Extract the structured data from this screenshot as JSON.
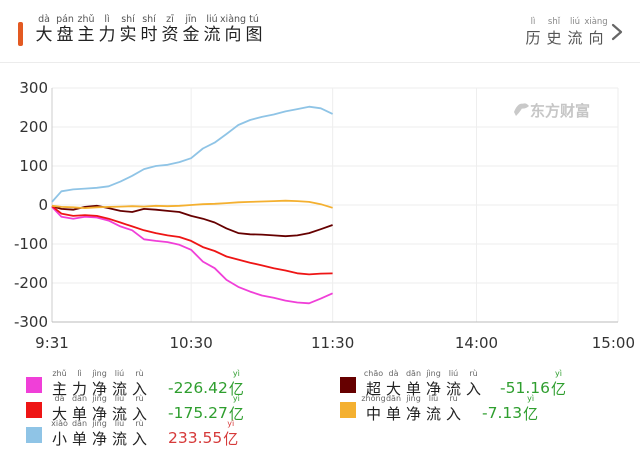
{
  "header": {
    "title_chars": [
      {
        "hz": "大",
        "py": "dà"
      },
      {
        "hz": "盘",
        "py": "pán"
      },
      {
        "hz": "主",
        "py": "zhǔ"
      },
      {
        "hz": "力",
        "py": "lì"
      },
      {
        "hz": "实",
        "py": "shí"
      },
      {
        "hz": "时",
        "py": "shí"
      },
      {
        "hz": "资",
        "py": "zī"
      },
      {
        "hz": "金",
        "py": "jīn"
      },
      {
        "hz": "流",
        "py": "liú"
      },
      {
        "hz": "向",
        "py": "xiàng"
      },
      {
        "hz": "图",
        "py": "tú"
      }
    ],
    "history_chars": [
      {
        "hz": "历",
        "py": "lì"
      },
      {
        "hz": "史",
        "py": "shǐ"
      },
      {
        "hz": "流",
        "py": "liú"
      },
      {
        "hz": "向",
        "py": "xiàng"
      }
    ],
    "accent_color": "#e35a22"
  },
  "watermark": "东方财富",
  "chart_data": {
    "type": "line",
    "x_ticks": [
      "9:31",
      "10:30",
      "11:30",
      "14:00",
      "15:00"
    ],
    "y_ticks": [
      300,
      200,
      100,
      0,
      -100,
      -200,
      -300
    ],
    "ylim": [
      -300,
      300
    ],
    "grid": true,
    "times": [
      "9:31",
      "9:35",
      "9:40",
      "9:45",
      "9:50",
      "9:55",
      "10:00",
      "10:05",
      "10:10",
      "10:15",
      "10:20",
      "10:25",
      "10:30",
      "10:35",
      "10:40",
      "10:45",
      "10:50",
      "10:55",
      "11:00",
      "11:05",
      "11:10",
      "11:15",
      "11:20",
      "11:25",
      "11:30"
    ],
    "series": [
      {
        "key": "main",
        "color": "#f03fd8",
        "values": [
          -5,
          -30,
          -35,
          -30,
          -32,
          -40,
          -55,
          -65,
          -88,
          -92,
          -95,
          -102,
          -115,
          -145,
          -162,
          -192,
          -210,
          -222,
          -232,
          -238,
          -245,
          -250,
          -252,
          -240,
          -226.42
        ]
      },
      {
        "key": "super",
        "color": "#660000",
        "values": [
          -3,
          -10,
          -12,
          -5,
          -2,
          -8,
          -15,
          -18,
          -10,
          -12,
          -15,
          -18,
          -28,
          -35,
          -45,
          -60,
          -72,
          -75,
          -76,
          -78,
          -80,
          -78,
          -72,
          -62,
          -51.16
        ]
      },
      {
        "key": "large",
        "color": "#ee1515",
        "values": [
          -3,
          -22,
          -28,
          -26,
          -28,
          -35,
          -45,
          -55,
          -65,
          -72,
          -78,
          -82,
          -92,
          -108,
          -118,
          -132,
          -140,
          -148,
          -155,
          -162,
          -168,
          -175,
          -178,
          -176,
          -175.27
        ]
      },
      {
        "key": "medium",
        "color": "#f4b030",
        "values": [
          -2,
          -5,
          -6,
          -8,
          -6,
          -5,
          -4,
          -3,
          -4,
          -2,
          -3,
          -2,
          0,
          2,
          3,
          5,
          7,
          8,
          9,
          10,
          11,
          10,
          8,
          2,
          -7.13
        ]
      },
      {
        "key": "small",
        "color": "#8fc4e6",
        "values": [
          8,
          35,
          40,
          42,
          44,
          48,
          60,
          75,
          92,
          100,
          103,
          110,
          120,
          145,
          160,
          182,
          205,
          218,
          226,
          232,
          240,
          246,
          252,
          248,
          233.55
        ]
      }
    ]
  },
  "legend": [
    {
      "key": "main",
      "color": "#f03fd8",
      "chars": [
        {
          "hz": "主",
          "py": "zhǔ"
        },
        {
          "hz": "力",
          "py": "lì"
        },
        {
          "hz": "净",
          "py": "jìng"
        },
        {
          "hz": "流",
          "py": "liú"
        },
        {
          "hz": "入",
          "py": "rù"
        }
      ],
      "value": "-226.42",
      "value_color": "#2e9e2e"
    },
    {
      "key": "super",
      "color": "#660000",
      "chars": [
        {
          "hz": "超",
          "py": "chāo"
        },
        {
          "hz": "大",
          "py": "dà"
        },
        {
          "hz": "单",
          "py": "dān"
        },
        {
          "hz": "净",
          "py": "jìng"
        },
        {
          "hz": "流",
          "py": "liú"
        },
        {
          "hz": "入",
          "py": "rù"
        }
      ],
      "value": "-51.16",
      "value_color": "#2e9e2e"
    },
    {
      "key": "large",
      "color": "#ee1515",
      "chars": [
        {
          "hz": "大",
          "py": "dà"
        },
        {
          "hz": "单",
          "py": "dān"
        },
        {
          "hz": "净",
          "py": "jìng"
        },
        {
          "hz": "流",
          "py": "liú"
        },
        {
          "hz": "入",
          "py": "rù"
        }
      ],
      "value": "-175.27",
      "value_color": "#2e9e2e"
    },
    {
      "key": "medium",
      "color": "#f4b030",
      "chars": [
        {
          "hz": "中",
          "py": "zhōng"
        },
        {
          "hz": "单",
          "py": "dān"
        },
        {
          "hz": "净",
          "py": "jìng"
        },
        {
          "hz": "流",
          "py": "liú"
        },
        {
          "hz": "入",
          "py": "rù"
        }
      ],
      "value": "-7.13",
      "value_color": "#2e9e2e"
    },
    {
      "key": "small",
      "color": "#8fc4e6",
      "chars": [
        {
          "hz": "小",
          "py": "xiǎo"
        },
        {
          "hz": "单",
          "py": "dān"
        },
        {
          "hz": "净",
          "py": "jìng"
        },
        {
          "hz": "流",
          "py": "liú"
        },
        {
          "hz": "入",
          "py": "rù"
        }
      ],
      "value": "233.55",
      "value_color": "#d63a3a"
    }
  ],
  "unit": {
    "hz": "亿",
    "py": "yì"
  }
}
